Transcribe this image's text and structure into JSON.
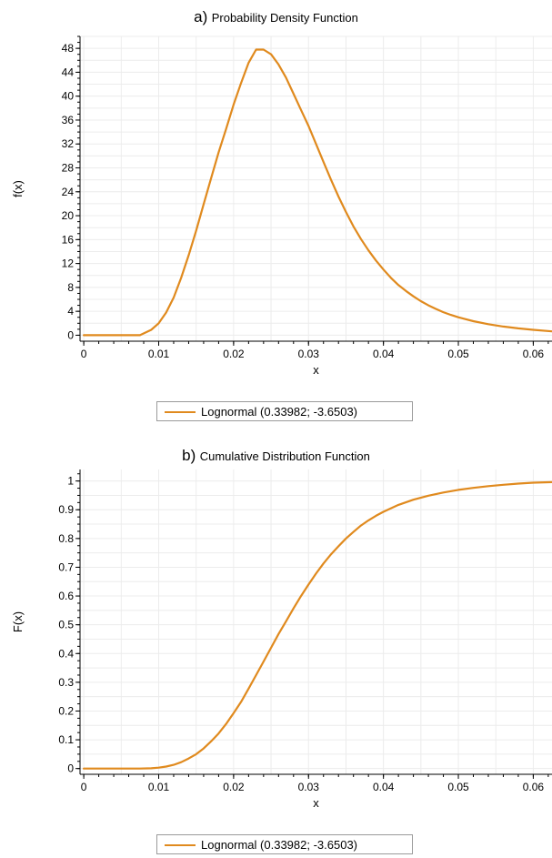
{
  "charts": [
    {
      "title_prefix": "a)",
      "title": "Probability Density Function",
      "legend": "Lognormal  (0.33982; -3.6503)"
    },
    {
      "title_prefix": "b)",
      "title": "Cumulative Distribution Function",
      "legend": "Lognormal  (0.33982; -3.6503)"
    }
  ],
  "line_color": "#e08a1e",
  "chart_data": [
    {
      "type": "line",
      "title": "Probability Density Function",
      "xlabel": "x",
      "ylabel": "f(x)",
      "xlim": [
        -0.0005,
        0.0625
      ],
      "ylim": [
        -1,
        50
      ],
      "xticks": [
        0,
        0.01,
        0.02,
        0.03,
        0.04,
        0.05,
        0.06
      ],
      "xtick_labels": [
        "0",
        "0.01",
        "0.02",
        "0.03",
        "0.04",
        "0.05",
        "0.06"
      ],
      "yticks": [
        0,
        4,
        8,
        12,
        16,
        20,
        24,
        28,
        32,
        36,
        40,
        44,
        48
      ],
      "ytick_labels": [
        "0",
        "4",
        "8",
        "12",
        "16",
        "20",
        "24",
        "28",
        "32",
        "36",
        "40",
        "44",
        "48"
      ],
      "grid": true,
      "legend_position": "bottom",
      "series": [
        {
          "name": "Lognormal  (0.33982; -3.6503)",
          "x": [
            0,
            0.005,
            0.0075,
            0.009,
            0.01,
            0.011,
            0.012,
            0.013,
            0.014,
            0.015,
            0.016,
            0.017,
            0.018,
            0.019,
            0.02,
            0.021,
            0.022,
            0.023,
            0.024,
            0.025,
            0.026,
            0.027,
            0.028,
            0.029,
            0.03,
            0.031,
            0.032,
            0.033,
            0.034,
            0.035,
            0.036,
            0.037,
            0.038,
            0.039,
            0.04,
            0.041,
            0.042,
            0.043,
            0.044,
            0.045,
            0.046,
            0.047,
            0.048,
            0.049,
            0.05,
            0.052,
            0.054,
            0.056,
            0.058,
            0.06,
            0.0625
          ],
          "y": [
            0,
            0,
            0,
            0.9,
            2.0,
            3.8,
            6.3,
            9.6,
            13.4,
            17.5,
            21.9,
            26.3,
            30.6,
            34.5,
            38.6,
            42.2,
            45.6,
            47.8,
            47.8,
            47.0,
            45.3,
            43.1,
            40.4,
            37.7,
            35.0,
            32.0,
            29.0,
            26.0,
            23.2,
            20.6,
            18.2,
            16.1,
            14.2,
            12.5,
            11.0,
            9.6,
            8.4,
            7.4,
            6.5,
            5.7,
            5.0,
            4.4,
            3.85,
            3.4,
            3.0,
            2.35,
            1.85,
            1.45,
            1.15,
            0.9,
            0.65
          ]
        }
      ]
    },
    {
      "type": "line",
      "title": "Cumulative Distribution Function",
      "xlabel": "x",
      "ylabel": "F(x)",
      "xlim": [
        -0.0005,
        0.0625
      ],
      "ylim": [
        -0.02,
        1.04
      ],
      "xticks": [
        0,
        0.01,
        0.02,
        0.03,
        0.04,
        0.05,
        0.06
      ],
      "xtick_labels": [
        "0",
        "0.01",
        "0.02",
        "0.03",
        "0.04",
        "0.05",
        "0.06"
      ],
      "yticks": [
        0,
        0.1,
        0.2,
        0.3,
        0.4,
        0.5,
        0.6,
        0.7,
        0.8,
        0.9,
        1
      ],
      "ytick_labels": [
        "0",
        "0.1",
        "0.2",
        "0.3",
        "0.4",
        "0.5",
        "0.6",
        "0.7",
        "0.8",
        "0.9",
        "1"
      ],
      "grid": true,
      "legend_position": "bottom",
      "series": [
        {
          "name": "Lognormal  (0.33982; -3.6503)",
          "x": [
            0,
            0.005,
            0.0075,
            0.009,
            0.01,
            0.011,
            0.012,
            0.013,
            0.014,
            0.015,
            0.016,
            0.017,
            0.018,
            0.019,
            0.02,
            0.021,
            0.022,
            0.023,
            0.024,
            0.025,
            0.026,
            0.027,
            0.028,
            0.029,
            0.03,
            0.031,
            0.032,
            0.033,
            0.034,
            0.035,
            0.036,
            0.037,
            0.038,
            0.039,
            0.04,
            0.042,
            0.044,
            0.046,
            0.048,
            0.05,
            0.052,
            0.054,
            0.056,
            0.058,
            0.06,
            0.0625
          ],
          "y": [
            0,
            0,
            0,
            0.001,
            0.003,
            0.007,
            0.013,
            0.022,
            0.035,
            0.05,
            0.07,
            0.095,
            0.122,
            0.155,
            0.193,
            0.232,
            0.278,
            0.325,
            0.372,
            0.42,
            0.468,
            0.512,
            0.557,
            0.6,
            0.64,
            0.678,
            0.713,
            0.745,
            0.773,
            0.8,
            0.823,
            0.845,
            0.863,
            0.879,
            0.893,
            0.917,
            0.935,
            0.949,
            0.96,
            0.969,
            0.976,
            0.982,
            0.987,
            0.991,
            0.994,
            0.996
          ]
        }
      ]
    }
  ]
}
